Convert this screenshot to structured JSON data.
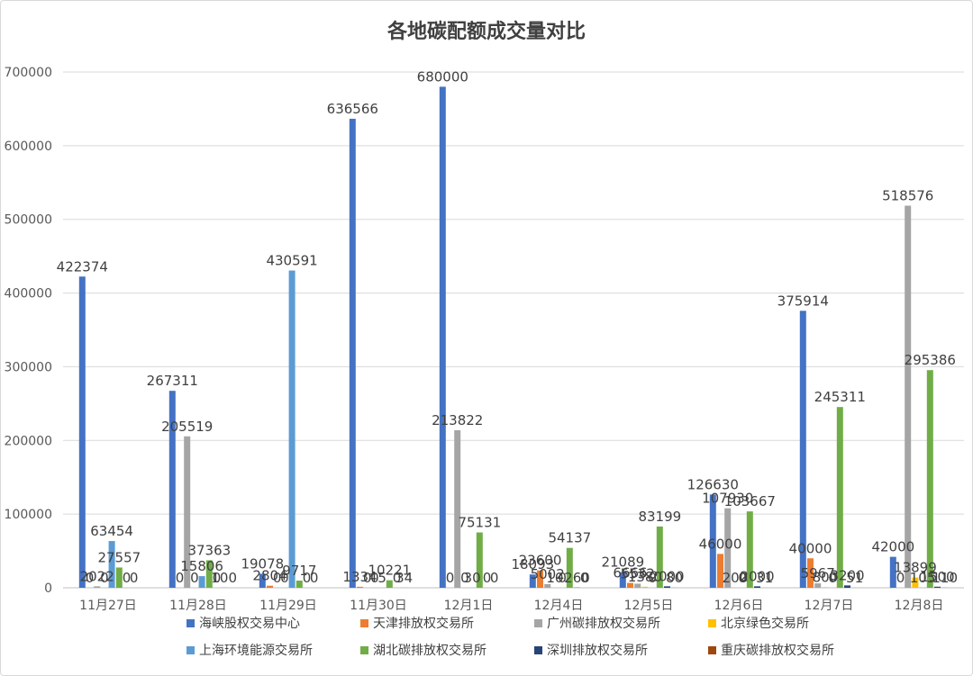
{
  "chart_data": {
    "type": "bar",
    "title": "各地碳配额成交量对比",
    "xlabel": "",
    "ylabel": "",
    "ylim": [
      0,
      700000
    ],
    "yticks": [
      0,
      100000,
      200000,
      300000,
      400000,
      500000,
      600000,
      700000
    ],
    "grid": true,
    "legend_position": "bottom",
    "categories": [
      "11月27日",
      "11月28日",
      "11月29日",
      "11月30日",
      "12月1日",
      "12月4日",
      "12月5日",
      "12月6日",
      "12月7日",
      "12月8日"
    ],
    "series": [
      {
        "name": "海峡股权交易中心",
        "color": "#4472c4",
        "values": [
          422374,
          267311,
          19078,
          636566,
          680000,
          18093,
          21089,
          126630,
          375914,
          42000
        ]
      },
      {
        "name": "天津排放权交易所",
        "color": "#ed7d31",
        "values": [
          0,
          0,
          2804,
          1334,
          0,
          23600,
          6666,
          46000,
          40000,
          0
        ]
      },
      {
        "name": "广州碳排放权交易所",
        "color": "#a5a5a5",
        "values": [
          2022,
          205519,
          0,
          0,
          213822,
          5002,
          5532,
          107930,
          5967,
          518576
        ]
      },
      {
        "name": "北京绿色交易所",
        "color": "#ffc000",
        "values": [
          0,
          0,
          0,
          0,
          0,
          10,
          1380,
          200,
          800,
          13899
        ]
      },
      {
        "name": "上海环境能源交易所",
        "color": "#5b9bd5",
        "values": [
          63454,
          15806,
          430591,
          5,
          30,
          0,
          0,
          0,
          0,
          105
        ]
      },
      {
        "name": "湖北碳排放权交易所",
        "color": "#70ad47",
        "values": [
          27557,
          37363,
          9717,
          10221,
          75131,
          54137,
          83199,
          103667,
          245311,
          295386
        ]
      },
      {
        "name": "深圳排放权交易所",
        "color": "#264478",
        "values": [
          0,
          0,
          0,
          0,
          0,
          260,
          2000,
          2000,
          3200,
          1500
        ]
      },
      {
        "name": "重庆碳排放权交易所",
        "color": "#9e480e",
        "values": [
          0,
          100,
          0,
          34,
          0,
          0,
          80,
          31,
          51,
          110
        ]
      }
    ]
  }
}
